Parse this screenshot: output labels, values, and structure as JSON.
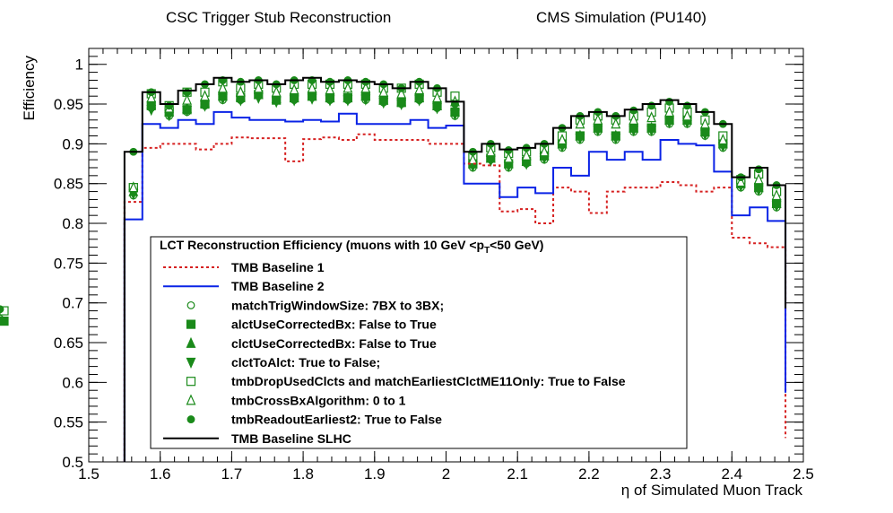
{
  "chart_data": {
    "type": "line",
    "title": "CSC Trigger Stub Reconstruction",
    "subtitle": "CMS Simulation (PU140)",
    "xlabel": "η of Simulated Muon Track",
    "ylabel": "Efficiency",
    "xlim": [
      1.5,
      2.5
    ],
    "ylim": [
      0.5,
      1.02
    ],
    "xticks": [
      "1.5",
      "1.6",
      "1.7",
      "1.8",
      "1.9",
      "2",
      "2.1",
      "2.2",
      "2.3",
      "2.4",
      "2.5"
    ],
    "yticks": [
      "0.5",
      "0.55",
      "0.6",
      "0.65",
      "0.7",
      "0.75",
      "0.8",
      "0.85",
      "0.9",
      "0.95",
      "1"
    ],
    "bin_edges": [
      1.55,
      1.575,
      1.6,
      1.625,
      1.65,
      1.675,
      1.7,
      1.725,
      1.75,
      1.775,
      1.8,
      1.825,
      1.85,
      1.875,
      1.9,
      1.925,
      1.95,
      1.975,
      2.0,
      2.025,
      2.05,
      2.075,
      2.1,
      2.125,
      2.15,
      2.175,
      2.2,
      2.225,
      2.25,
      2.275,
      2.3,
      2.325,
      2.35,
      2.375,
      2.4,
      2.425,
      2.45,
      2.475
    ],
    "grid": false,
    "legend": {
      "title": "LCT Reconstruction Efficiency  (muons with 10 GeV <p",
      "title_sub": "T",
      "title_end": " <50 GeV)",
      "placement": "lower-left"
    },
    "series": [
      {
        "name": "TMB Baseline 1",
        "style": "dotted-line",
        "color": "#d62020",
        "values": [
          0.827,
          0.895,
          0.9,
          0.9,
          0.893,
          0.9,
          0.908,
          0.907,
          0.907,
          0.878,
          0.906,
          0.908,
          0.905,
          0.912,
          0.905,
          0.905,
          0.905,
          0.9,
          0.9,
          0.875,
          0.873,
          0.815,
          0.818,
          0.8,
          0.845,
          0.84,
          0.813,
          0.84,
          0.845,
          0.845,
          0.852,
          0.848,
          0.84,
          0.845,
          0.782,
          0.775,
          0.77,
          0.53
        ]
      },
      {
        "name": "TMB Baseline 2",
        "style": "line",
        "color": "#0a23e6",
        "values": [
          0.805,
          0.925,
          0.92,
          0.93,
          0.925,
          0.94,
          0.933,
          0.93,
          0.93,
          0.928,
          0.93,
          0.928,
          0.938,
          0.925,
          0.925,
          0.925,
          0.93,
          0.92,
          0.923,
          0.85,
          0.85,
          0.833,
          0.845,
          0.838,
          0.87,
          0.86,
          0.89,
          0.88,
          0.89,
          0.88,
          0.905,
          0.9,
          0.898,
          0.865,
          0.81,
          0.82,
          0.803,
          0.587
        ]
      },
      {
        "name": "matchTrigWindowSize: 7BX to 3BX;",
        "marker": "open-circle",
        "color": "#1a8a1a",
        "values": [
          0.835,
          0.945,
          0.935,
          0.94,
          0.948,
          0.955,
          0.955,
          0.96,
          0.955,
          0.955,
          0.958,
          0.955,
          0.955,
          0.955,
          0.952,
          0.95,
          0.955,
          0.945,
          0.935,
          0.87,
          0.88,
          0.87,
          0.875,
          0.88,
          0.895,
          0.905,
          0.915,
          0.905,
          0.915,
          0.915,
          0.925,
          0.925,
          0.91,
          0.895,
          0.845,
          0.84,
          0.82,
          0.68
        ]
      },
      {
        "name": "alctUseCorrectedBx: False to True",
        "marker": "filled-square",
        "color": "#1a8a1a",
        "values": [
          0.845,
          0.948,
          0.94,
          0.943,
          0.95,
          0.96,
          0.958,
          0.962,
          0.955,
          0.958,
          0.96,
          0.958,
          0.958,
          0.96,
          0.955,
          0.952,
          0.958,
          0.948,
          0.94,
          0.875,
          0.882,
          0.875,
          0.878,
          0.885,
          0.9,
          0.91,
          0.92,
          0.91,
          0.92,
          0.92,
          0.93,
          0.93,
          0.915,
          0.9,
          0.85,
          0.845,
          0.825,
          0.677
        ]
      },
      {
        "name": "clctUseCorrectedBx: False to True",
        "marker": "filled-triangle-up",
        "color": "#1a8a1a",
        "values": [
          0.84,
          0.95,
          0.94,
          0.945,
          0.952,
          0.96,
          0.96,
          0.962,
          0.957,
          0.958,
          0.96,
          0.958,
          0.958,
          0.96,
          0.955,
          0.953,
          0.958,
          0.948,
          0.94,
          0.875,
          0.882,
          0.875,
          0.878,
          0.885,
          0.9,
          0.91,
          0.92,
          0.91,
          0.92,
          0.92,
          0.93,
          0.93,
          0.915,
          0.9,
          0.85,
          0.845,
          0.825,
          0.68
        ]
      },
      {
        "name": "clctToAlct: True to False;",
        "marker": "filled-triangle-down",
        "color": "#1a8a1a",
        "values": [
          0.837,
          0.943,
          0.936,
          0.942,
          0.948,
          0.957,
          0.955,
          0.958,
          0.953,
          0.955,
          0.957,
          0.955,
          0.955,
          0.956,
          0.952,
          0.95,
          0.955,
          0.945,
          0.937,
          0.872,
          0.879,
          0.872,
          0.875,
          0.882,
          0.897,
          0.907,
          0.917,
          0.907,
          0.917,
          0.917,
          0.927,
          0.927,
          0.912,
          0.897,
          0.847,
          0.842,
          0.822,
          0.677
        ]
      },
      {
        "name": "tmbDropUsedClcts and matchEarliestClctME11Only: True to False",
        "marker": "open-square",
        "color": "#1a8a1a",
        "values": [
          0.845,
          0.963,
          0.948,
          0.965,
          0.965,
          0.978,
          0.97,
          0.975,
          0.97,
          0.975,
          0.975,
          0.975,
          0.975,
          0.975,
          0.97,
          0.97,
          0.975,
          0.965,
          0.96,
          0.885,
          0.895,
          0.888,
          0.89,
          0.895,
          0.91,
          0.93,
          0.935,
          0.93,
          0.935,
          0.94,
          0.945,
          0.94,
          0.93,
          0.91,
          0.855,
          0.862,
          0.84,
          0.69
        ]
      },
      {
        "name": "tmbCrossBxAlgorithm: 0 to 1",
        "marker": "open-triangle-up",
        "color": "#1a8a1a",
        "values": [
          0.845,
          0.958,
          0.945,
          0.955,
          0.96,
          0.97,
          0.965,
          0.97,
          0.965,
          0.968,
          0.97,
          0.968,
          0.97,
          0.97,
          0.965,
          0.963,
          0.968,
          0.958,
          0.953,
          0.88,
          0.89,
          0.882,
          0.885,
          0.89,
          0.905,
          0.925,
          0.93,
          0.925,
          0.93,
          0.933,
          0.94,
          0.935,
          0.925,
          0.905,
          0.852,
          0.855,
          0.835,
          0.69
        ]
      },
      {
        "name": "tmbReadoutEarliest2: True to False",
        "marker": "filled-circle",
        "color": "#1a8a1a",
        "values": [
          0.89,
          0.965,
          0.948,
          0.965,
          0.975,
          0.98,
          0.978,
          0.98,
          0.975,
          0.98,
          0.98,
          0.978,
          0.98,
          0.978,
          0.975,
          0.97,
          0.978,
          0.97,
          0.95,
          0.89,
          0.9,
          0.892,
          0.895,
          0.9,
          0.92,
          0.935,
          0.94,
          0.935,
          0.942,
          0.948,
          0.953,
          0.948,
          0.94,
          0.925,
          0.858,
          0.868,
          0.848,
          0.692
        ]
      },
      {
        "name": "TMB Baseline SLHC",
        "style": "line",
        "color": "#000000",
        "values": [
          0.89,
          0.965,
          0.95,
          0.967,
          0.975,
          0.983,
          0.978,
          0.98,
          0.975,
          0.98,
          0.983,
          0.978,
          0.98,
          0.978,
          0.975,
          0.97,
          0.978,
          0.97,
          0.953,
          0.89,
          0.9,
          0.893,
          0.895,
          0.9,
          0.92,
          0.935,
          0.94,
          0.935,
          0.943,
          0.95,
          0.955,
          0.95,
          0.94,
          0.925,
          0.858,
          0.87,
          0.848,
          0.693
        ]
      }
    ]
  }
}
